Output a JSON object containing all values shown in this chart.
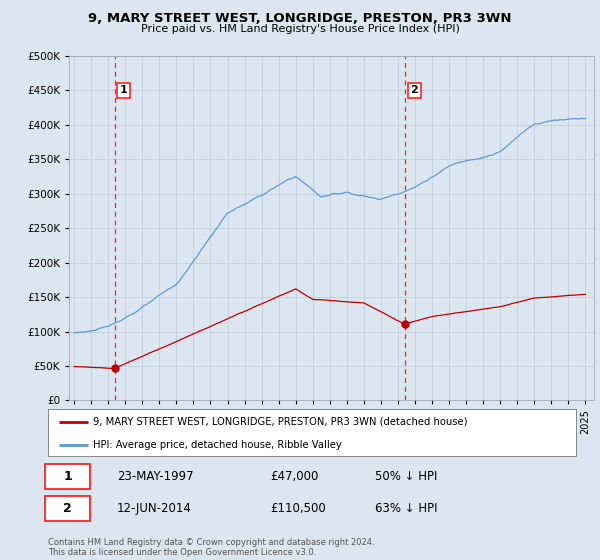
{
  "title": "9, MARY STREET WEST, LONGRIDGE, PRESTON, PR3 3WN",
  "subtitle": "Price paid vs. HM Land Registry's House Price Index (HPI)",
  "legend_line1": "9, MARY STREET WEST, LONGRIDGE, PRESTON, PR3 3WN (detached house)",
  "legend_line2": "HPI: Average price, detached house, Ribble Valley",
  "annotation1_date": "23-MAY-1997",
  "annotation1_price": "£47,000",
  "annotation1_hpi": "50% ↓ HPI",
  "annotation1_year": 1997.39,
  "annotation1_value": 47000,
  "annotation2_date": "12-JUN-2014",
  "annotation2_price": "£110,500",
  "annotation2_hpi": "63% ↓ HPI",
  "annotation2_year": 2014.44,
  "annotation2_value": 110500,
  "footer": "Contains HM Land Registry data © Crown copyright and database right 2024.\nThis data is licensed under the Open Government Licence v3.0.",
  "hpi_color": "#5b9bd5",
  "price_color": "#c00000",
  "bg_color": "#dce6f1",
  "plot_fill": "#dce6f1",
  "grid_color": "#c0c8d8",
  "vline_color": "#ff2222",
  "ylim": [
    0,
    500000
  ],
  "xlim_start": 1994.7,
  "xlim_end": 2025.5,
  "yticks": [
    0,
    50000,
    100000,
    150000,
    200000,
    250000,
    300000,
    350000,
    400000,
    450000,
    500000
  ],
  "xticks": [
    1995,
    1996,
    1997,
    1998,
    1999,
    2000,
    2001,
    2002,
    2003,
    2004,
    2005,
    2006,
    2007,
    2008,
    2009,
    2010,
    2011,
    2012,
    2013,
    2014,
    2015,
    2016,
    2017,
    2018,
    2019,
    2020,
    2021,
    2022,
    2023,
    2024,
    2025
  ]
}
